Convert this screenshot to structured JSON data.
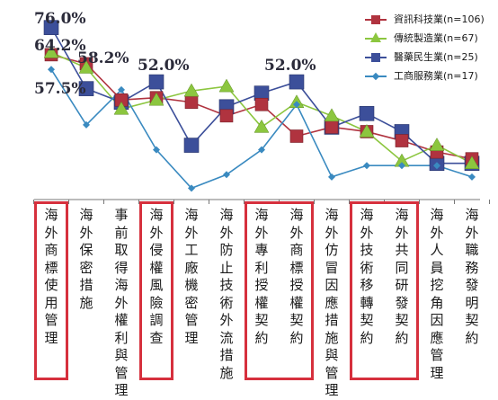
{
  "chart_data": {
    "type": "line",
    "title": "",
    "xlabel": "",
    "ylabel": "",
    "ylim": [
      0,
      85
    ],
    "grid": false,
    "legend_position": "top-right",
    "categories": [
      "海外商標使用管理",
      "海外保密措施",
      "事前取得海外權利與管理",
      "海外侵權風險調查",
      "海外工廠機密管理",
      "海外防止技術外流措施",
      "海外專利授權契約",
      "海外商標授權契約",
      "海外仿冒因應措施與管理",
      "海外技術移轉契約",
      "海外共同研發契約",
      "海外人員挖角因應管理",
      "海外職務發明契約"
    ],
    "series": [
      {
        "name": "資訊科技業(n=106)",
        "color": "#b0333f",
        "marker": "square",
        "values": [
          64,
          60,
          44,
          45,
          43,
          37,
          42,
          28,
          32,
          30,
          26,
          21,
          18
        ]
      },
      {
        "name": "傳統製造業(n=67)",
        "color": "#8cc63f",
        "marker": "triangle",
        "values": [
          65,
          58.2,
          40,
          44,
          48,
          50,
          32,
          43,
          37,
          30,
          17,
          24,
          16
        ]
      },
      {
        "name": "醫藥民生業(n=25)",
        "color": "#3c4f9a",
        "marker": "square-large",
        "values": [
          76,
          49,
          43,
          52,
          24,
          41,
          47,
          52,
          32,
          38,
          30,
          16,
          16
        ]
      },
      {
        "name": "工商服務業(n=17)",
        "color": "#3a8ac0",
        "marker": "diamond",
        "values": [
          57.5,
          33,
          48.5,
          22,
          5,
          11,
          22,
          42,
          10,
          15,
          15,
          15,
          10
        ]
      }
    ],
    "annotations": [
      "76.0%",
      "64.2%",
      "58.2%",
      "57.5%",
      "52.0%",
      "52.0%"
    ],
    "highlighted_categories": [
      0,
      3,
      6,
      7,
      9,
      10
    ]
  }
}
